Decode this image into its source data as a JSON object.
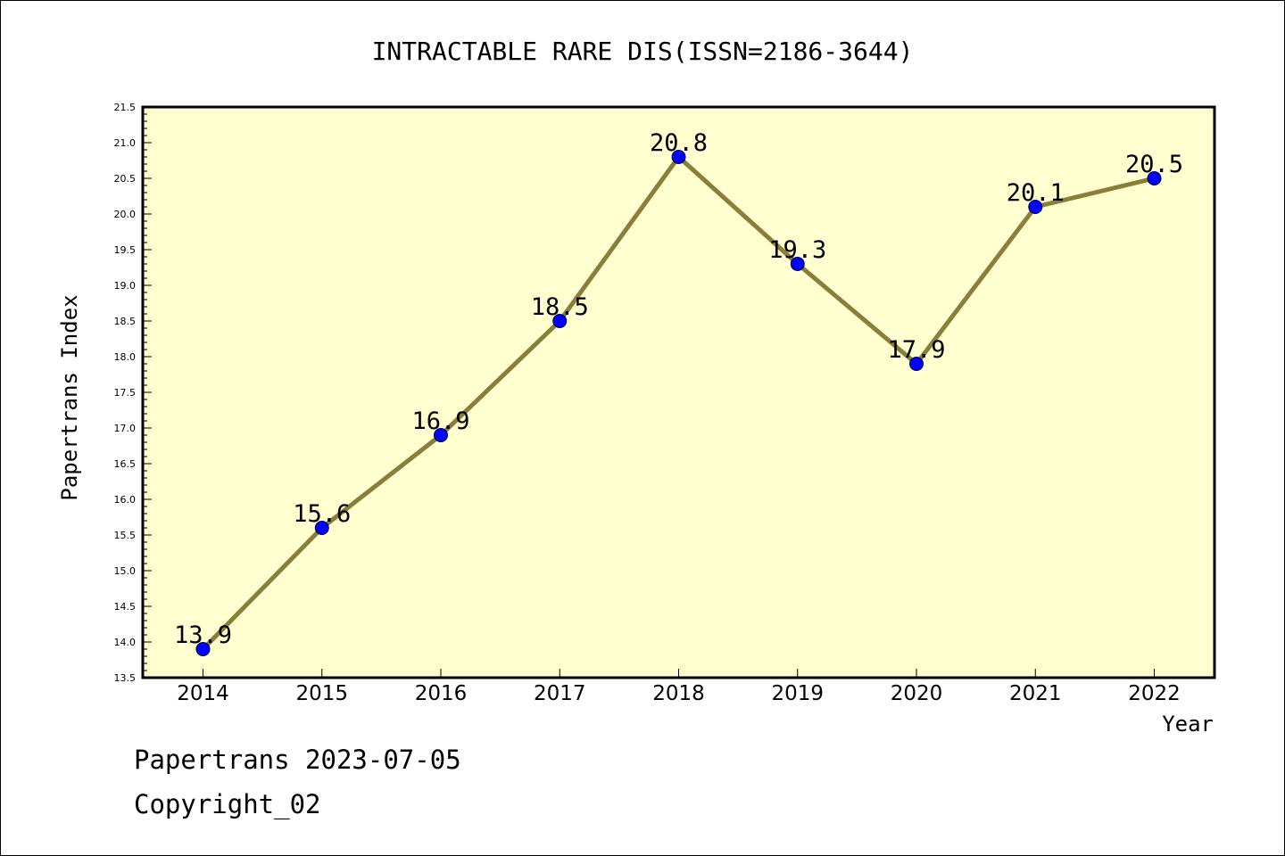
{
  "chart_data": {
    "type": "line",
    "title": "INTRACTABLE RARE DIS(ISSN=2186-3644)",
    "xlabel": "Year",
    "ylabel": "Papertrans Index",
    "x": [
      "2014",
      "2015",
      "2016",
      "2017",
      "2018",
      "2019",
      "2020",
      "2021",
      "2022"
    ],
    "series": [
      {
        "values": [
          13.9,
          15.6,
          16.9,
          18.5,
          20.8,
          19.3,
          17.9,
          20.1,
          20.5
        ],
        "labels": [
          "13.9",
          "15.6",
          "16.9",
          "18.5",
          "20.8",
          "19.3",
          "17.9",
          "20.1",
          "20.5"
        ],
        "line_color": "#8b7d3a",
        "marker_color": "#0000ff"
      }
    ],
    "ylim": [
      13.5,
      21.5
    ],
    "yticks": [
      "13.5",
      "14.0",
      "14.5",
      "15.0",
      "15.5",
      "16.0",
      "16.5",
      "17.0",
      "17.5",
      "18.0",
      "18.5",
      "19.0",
      "19.5",
      "20.0",
      "20.5",
      "21.0",
      "21.5"
    ],
    "grid": false,
    "legend": "none",
    "plot_background": "#ffffd0"
  },
  "footer": {
    "date_line": "Papertrans 2023-07-05",
    "copyright_line": "Copyright_02"
  }
}
